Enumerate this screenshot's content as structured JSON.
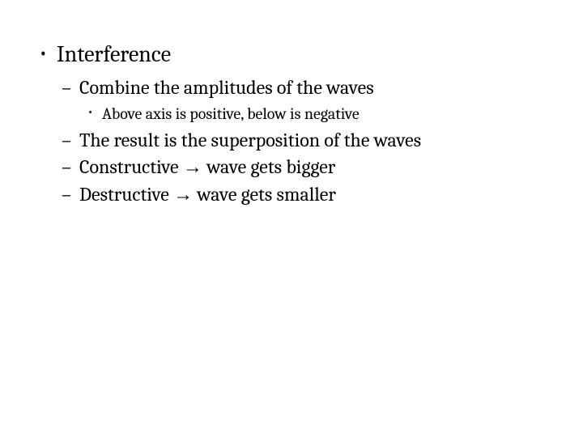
{
  "slide": {
    "background_color": "#ffffff",
    "text_color": "#000000",
    "font_family": "Cambria, Georgia, serif",
    "bullets": {
      "lvl1": [
        {
          "text": "Interference",
          "lvl2": [
            {
              "text": "Combine the amplitudes of the waves",
              "lvl3": [
                {
                  "text": "Above axis is positive, below is negative"
                }
              ]
            },
            {
              "text": "The result is the superposition of the waves"
            },
            {
              "text_pre": "Constructive ",
              "arrow": "→",
              "text_post": " wave gets bigger"
            },
            {
              "text_pre": "Destructive ",
              "arrow": "→",
              "text_post": " wave gets smaller"
            }
          ]
        }
      ]
    },
    "fontsize_lvl1": 28,
    "fontsize_lvl2": 24,
    "fontsize_lvl3": 20
  }
}
